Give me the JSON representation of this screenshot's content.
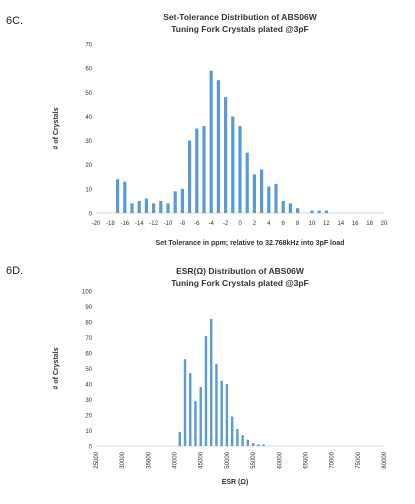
{
  "panels": [
    {
      "label": "6C."
    },
    {
      "label": "6D."
    }
  ],
  "colors": {
    "bar": "#5b9bd5",
    "axis": "#d9d9d9",
    "text": "#333333"
  },
  "chart_data": [
    {
      "type": "bar",
      "title": "Set-Tolerance Distribution of ABS06W",
      "subtitle": "Tuning Fork Crystals plated @3pF",
      "xlabel": "Set Tolerance in ppm; relative to 32.768kHz into 3pF load",
      "ylabel": "# of Crystals",
      "xlim": [
        -20,
        20
      ],
      "ylim": [
        0,
        70
      ],
      "x_ticks": [
        -20,
        -18,
        -16,
        -14,
        -12,
        -10,
        -8,
        -6,
        -4,
        -2,
        0,
        2,
        4,
        6,
        8,
        10,
        12,
        14,
        16,
        18,
        20
      ],
      "y_ticks": [
        0,
        10,
        20,
        30,
        40,
        50,
        60,
        70
      ],
      "grid": false,
      "x": [
        -17,
        -16,
        -15,
        -14,
        -13,
        -12,
        -11,
        -10,
        -9,
        -8,
        -7,
        -6,
        -5,
        -4,
        -3,
        -2,
        -1,
        0,
        1,
        2,
        3,
        4,
        5,
        6,
        7,
        8,
        9,
        10,
        11,
        12,
        13
      ],
      "values": [
        14,
        13,
        4,
        5,
        6,
        4,
        5,
        4,
        9,
        10,
        30,
        35,
        36,
        59,
        55,
        48,
        40,
        36,
        25,
        16,
        18,
        11,
        12,
        5,
        4,
        2,
        0,
        1,
        1,
        1,
        0
      ]
    },
    {
      "type": "bar",
      "title": "ESR(Ω) Distribution of ABS06W",
      "subtitle": "Tuning Fork Crystals plated @3pF",
      "xlabel": "ESR (Ω)",
      "ylabel": "# of Crystals",
      "xlim": [
        25000,
        80000
      ],
      "ylim": [
        0,
        100
      ],
      "x_ticks": [
        "25000",
        "30000",
        "35000",
        "40000",
        "45000",
        "50000",
        "55000",
        "60000",
        "65000",
        "70000",
        "75000",
        "80000"
      ],
      "y_ticks": [
        0,
        10,
        20,
        30,
        40,
        50,
        60,
        70,
        80,
        90,
        100
      ],
      "grid": false,
      "x": [
        41000,
        42000,
        43000,
        44000,
        45000,
        46000,
        47000,
        48000,
        49000,
        50000,
        51000,
        52000,
        53000,
        54000,
        55000,
        56000,
        57000
      ],
      "values": [
        9,
        56,
        47,
        29,
        38,
        71,
        82,
        53,
        42,
        40,
        19,
        11,
        7,
        4,
        2,
        1,
        1
      ]
    }
  ]
}
